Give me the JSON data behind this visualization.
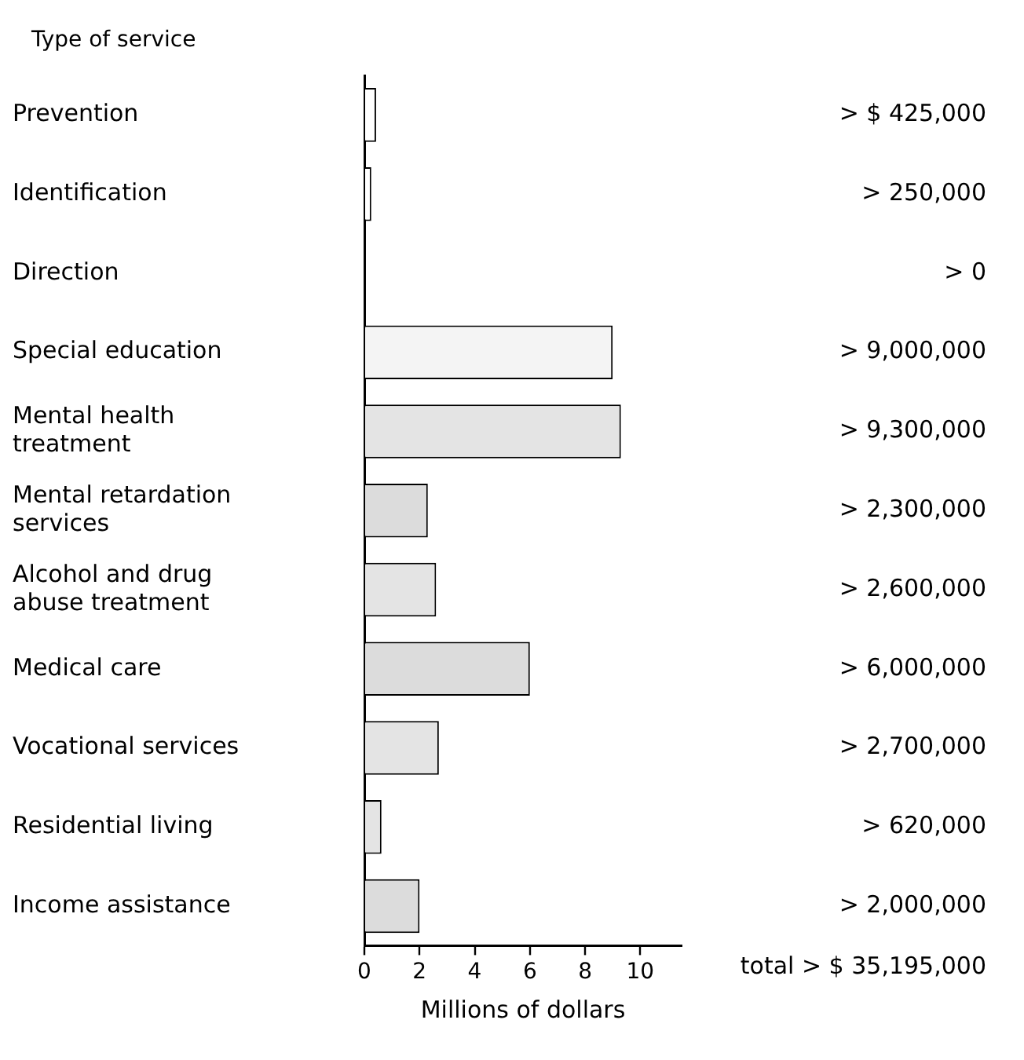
{
  "chart_data": {
    "type": "bar",
    "orientation": "horizontal",
    "ylabel": "Type of service",
    "xlabel": "Millions of dollars",
    "categories": [
      "Prevention",
      "Identification",
      "Direction",
      "Special education",
      "Mental health\ntreatment",
      "Mental retardation\nservices",
      "Alcohol and drug\nabuse treatment",
      "Medical care",
      "Vocational services",
      "Residential living",
      "Income assistance"
    ],
    "values": [
      0.425,
      0.25,
      0,
      9,
      9.3,
      2.3,
      2.6,
      6,
      2.7,
      0.62,
      2
    ],
    "value_labels": [
      "> $ 425,000",
      "> 250,000",
      "> 0",
      "> 9,000,000",
      "> 9,300,000",
      "> 2,300,000",
      "> 2,600,000",
      "> 6,000,000",
      "> 2,700,000",
      "> 620,000",
      "> 2,000,000"
    ],
    "colors": [
      "#ffffff",
      "#ffffff",
      "#ffffff",
      "#f4f4f4",
      "#e4e4e4",
      "#dcdcdc",
      "#e4e4e4",
      "#dcdcdc",
      "#e4e4e4",
      "#e4e4e4",
      "#dcdcdc"
    ],
    "annotations": [
      "total > $ 35,195,000"
    ],
    "xlim": [
      0,
      11.5
    ],
    "xticks": [
      0,
      2,
      4,
      6,
      8,
      10
    ],
    "grid": false,
    "legend": false
  }
}
